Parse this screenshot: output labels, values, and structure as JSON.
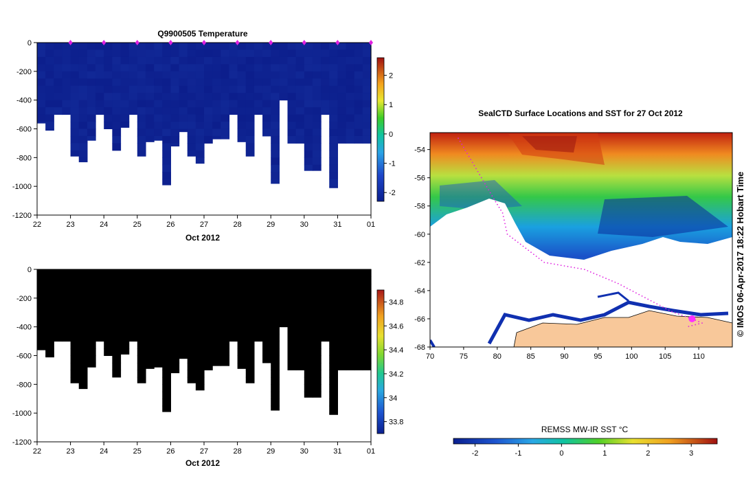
{
  "chart_data": [
    {
      "type": "heatmap",
      "title": "Q9900505  Temperature",
      "xlabel": "Oct 2012",
      "ylabel": "",
      "x_ticks": [
        "22",
        "23",
        "24",
        "25",
        "26",
        "27",
        "28",
        "29",
        "30",
        "31",
        "01"
      ],
      "y_ticks": [
        "0",
        "-200",
        "-400",
        "-600",
        "-800",
        "-1000",
        "-1200"
      ],
      "xlim": [
        22,
        32
      ],
      "ylim": [
        -1200,
        0
      ],
      "colorbar": {
        "min": -2.3,
        "max": 2.6,
        "ticks": [
          "-2",
          "-1",
          "0",
          "1",
          "2"
        ],
        "tick_values": [
          -2,
          -1,
          0,
          1,
          2
        ]
      },
      "profile_days": [
        22.1,
        22.35,
        22.6,
        22.85,
        23.1,
        23.35,
        23.6,
        23.85,
        24.1,
        24.35,
        24.6,
        24.85,
        25.1,
        25.35,
        25.6,
        25.85,
        26.1,
        26.35,
        26.6,
        26.85,
        27.1,
        27.35,
        27.6,
        27.85,
        28.1,
        28.35,
        28.6,
        28.85,
        29.1,
        29.35,
        29.6,
        29.85,
        30.1,
        30.35,
        30.6,
        30.85,
        31.1,
        31.35,
        31.6,
        31.85
      ],
      "profile_max_depth": [
        -560,
        -610,
        -500,
        -500,
        -790,
        -830,
        -680,
        -500,
        -600,
        -750,
        -590,
        -500,
        -790,
        -690,
        -680,
        -990,
        -720,
        -620,
        -790,
        -840,
        -700,
        -670,
        -670,
        -500,
        -690,
        -790,
        -500,
        -650,
        -980,
        -400,
        -700,
        -700,
        -890,
        -890,
        -500,
        -1010,
        -700,
        -700,
        -700,
        -700
      ],
      "surface_marker_days": [
        23,
        24,
        25,
        26,
        27,
        28,
        29,
        30,
        31,
        32
      ]
    },
    {
      "type": "heatmap",
      "title": "",
      "xlabel": "Oct 2012",
      "ylabel": "",
      "x_ticks": [
        "22",
        "23",
        "24",
        "25",
        "26",
        "27",
        "28",
        "29",
        "30",
        "31",
        "01"
      ],
      "y_ticks": [
        "0",
        "-200",
        "-400",
        "-600",
        "-800",
        "-1000",
        "-1200"
      ],
      "xlim": [
        22,
        32
      ],
      "ylim": [
        -1200,
        0
      ],
      "colorbar": {
        "min": 33.7,
        "max": 34.9,
        "ticks": [
          "33.8",
          "34",
          "34.2",
          "34.4",
          "34.6",
          "34.8"
        ],
        "tick_values": [
          33.8,
          34,
          34.2,
          34.4,
          34.6,
          34.8
        ]
      },
      "profile_days": [
        22.1,
        22.35,
        22.6,
        22.85,
        23.1,
        23.35,
        23.6,
        23.85,
        24.1,
        24.35,
        24.6,
        24.85,
        25.1,
        25.35,
        25.6,
        25.85,
        26.1,
        26.35,
        26.6,
        26.85,
        27.1,
        27.35,
        27.6,
        27.85,
        28.1,
        28.35,
        28.6,
        28.85,
        29.1,
        29.35,
        29.6,
        29.85,
        30.1,
        30.35,
        30.6,
        30.85,
        31.1,
        31.35,
        31.6,
        31.85
      ],
      "profile_max_depth": [
        -560,
        -610,
        -500,
        -500,
        -790,
        -830,
        -680,
        -500,
        -600,
        -750,
        -590,
        -500,
        -790,
        -690,
        -680,
        -990,
        -720,
        -620,
        -790,
        -840,
        -700,
        -670,
        -670,
        -500,
        -690,
        -790,
        -500,
        -650,
        -980,
        -400,
        -700,
        -700,
        -890,
        -890,
        -500,
        -1010,
        -700,
        -700,
        -700,
        -700
      ]
    },
    {
      "type": "heatmap",
      "title": "SealCTD Surface Locations and SST for 27 Oct 2012",
      "xlabel": "",
      "ylabel": "",
      "x_ticks": [
        "70",
        "75",
        "80",
        "85",
        "90",
        "95",
        "100",
        "105",
        "110"
      ],
      "y_ticks": [
        "-54",
        "-56",
        "-58",
        "-60",
        "-62",
        "-64",
        "-66",
        "-68"
      ],
      "xlim": [
        70,
        115
      ],
      "ylim": [
        -68,
        -52.8
      ],
      "colorbar": {
        "label": "REMSS MW-IR SST °C",
        "min": -2.5,
        "max": 3.6,
        "ticks": [
          "-2",
          "-1",
          "0",
          "1",
          "2",
          "3"
        ],
        "tick_values": [
          -2,
          -1,
          0,
          1,
          2,
          3
        ]
      },
      "side_caption": "© IMOS 06-Apr-2017 18:22 Hobart Time",
      "track_points": [
        [
          74.2,
          -53.2
        ],
        [
          79.5,
          -57.5
        ],
        [
          80.8,
          -58.5
        ],
        [
          81.5,
          -60
        ],
        [
          87,
          -62
        ],
        [
          93,
          -62.5
        ],
        [
          98,
          -63.5
        ],
        [
          102,
          -64.5
        ],
        [
          106,
          -65.5
        ],
        [
          109,
          -66
        ],
        [
          110.5,
          -66.3
        ],
        [
          108,
          -66.6
        ]
      ]
    }
  ]
}
